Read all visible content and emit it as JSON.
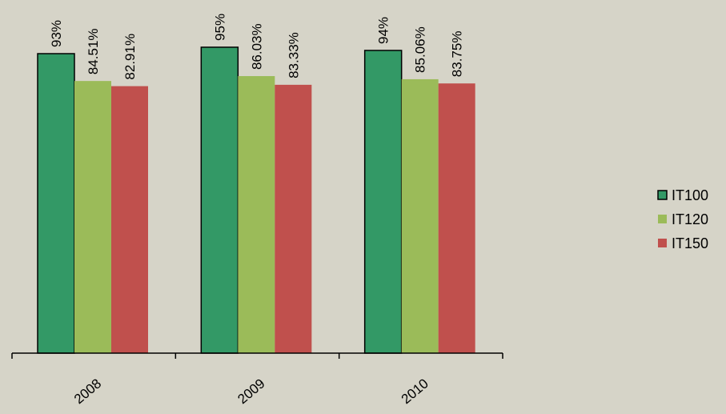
{
  "chart_data": {
    "type": "bar",
    "categories": [
      "2008",
      "2009",
      "2010"
    ],
    "series": [
      {
        "name": "IT100",
        "values": [
          93,
          95,
          94
        ],
        "labels": [
          "93%",
          "95%",
          "94%"
        ],
        "color": "#339966",
        "outlined": true
      },
      {
        "name": "IT120",
        "values": [
          84.51,
          86.03,
          85.06
        ],
        "labels": [
          "84.51%",
          "86.03%",
          "85.06%"
        ],
        "color": "#9bbb59",
        "outlined": false
      },
      {
        "name": "IT150",
        "values": [
          82.91,
          83.33,
          83.75
        ],
        "labels": [
          "82.91%",
          "83.33%",
          "83.75%"
        ],
        "color": "#c0504d",
        "outlined": false
      }
    ],
    "ylim": [
      0,
      100
    ],
    "grid": false,
    "legend": "right"
  }
}
